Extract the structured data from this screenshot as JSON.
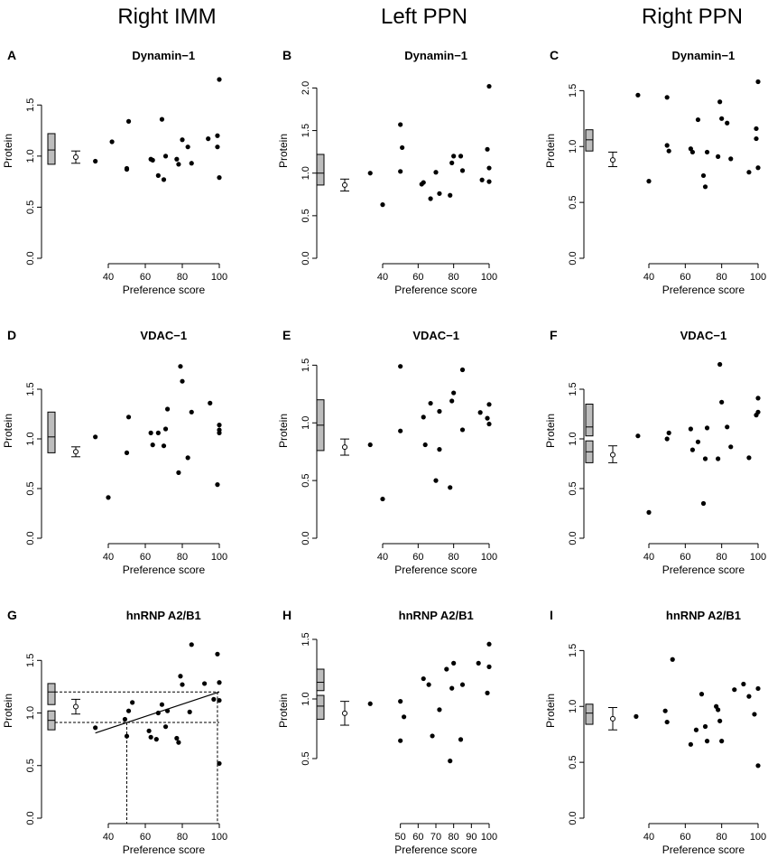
{
  "column_titles": [
    "Right IMM",
    "Left PPN",
    "Right PPN"
  ],
  "chart_data": [
    {
      "type": "scatter",
      "letter": "A",
      "title": "Dynamin−1",
      "xlabel": "Preference score",
      "ylabel": "Protein",
      "xlim": [
        30,
        100
      ],
      "ylim": [
        0,
        1.75
      ],
      "xticks": [
        "40",
        "60",
        "80",
        "100"
      ],
      "yticks": [
        "0.0",
        "0.5",
        "1.0",
        "1.5"
      ],
      "x": [
        33,
        42,
        50,
        50,
        51,
        63,
        64,
        67,
        69,
        70,
        71,
        77,
        78,
        80,
        83,
        85,
        94,
        99,
        99,
        100,
        100
      ],
      "y": [
        0.95,
        1.14,
        0.88,
        0.87,
        1.34,
        0.97,
        0.96,
        0.81,
        1.36,
        0.77,
        1.0,
        0.97,
        0.92,
        1.16,
        1.09,
        0.93,
        1.17,
        1.2,
        1.09,
        0.79,
        1.75
      ],
      "boxes": [
        {
          "low": 0.92,
          "median": 1.06,
          "high": 1.22
        }
      ],
      "ci": {
        "low": 0.93,
        "mid": 0.99,
        "high": 1.05
      }
    },
    {
      "type": "scatter",
      "letter": "B",
      "title": "Dynamin−1",
      "xlabel": "Preference score",
      "ylabel": "Protein",
      "xlim": [
        30,
        100
      ],
      "ylim": [
        0,
        2.1
      ],
      "xticks": [
        "40",
        "60",
        "80",
        "100"
      ],
      "yticks": [
        "0.0",
        "0.5",
        "1.0",
        "1.5",
        "2.0"
      ],
      "x": [
        33,
        40,
        50,
        50,
        51,
        62,
        63,
        67,
        70,
        72,
        78,
        79,
        80,
        84,
        85,
        96,
        99,
        100,
        100,
        100
      ],
      "y": [
        1.0,
        0.63,
        1.57,
        1.02,
        1.3,
        0.87,
        0.89,
        0.7,
        1.01,
        0.76,
        0.74,
        1.12,
        1.2,
        1.2,
        1.03,
        0.92,
        1.28,
        1.06,
        0.9,
        2.02
      ],
      "boxes": [
        {
          "low": 0.86,
          "median": 1.0,
          "high": 1.22
        }
      ],
      "ci": {
        "low": 0.79,
        "mid": 0.86,
        "high": 0.93
      }
    },
    {
      "type": "scatter",
      "letter": "C",
      "title": "Dynamin−1",
      "xlabel": "Preference score",
      "ylabel": "Protein",
      "xlim": [
        30,
        100
      ],
      "ylim": [
        0,
        1.6
      ],
      "xticks": [
        "40",
        "60",
        "80",
        "100"
      ],
      "yticks": [
        "0.0",
        "0.5",
        "1.0",
        "1.5"
      ],
      "x": [
        34,
        40,
        50,
        50,
        51,
        63,
        64,
        67,
        70,
        71,
        72,
        78,
        79,
        80,
        83,
        85,
        95,
        99,
        99,
        100,
        100
      ],
      "y": [
        1.46,
        0.69,
        1.44,
        1.01,
        0.96,
        0.98,
        0.95,
        1.24,
        0.74,
        0.64,
        0.95,
        0.91,
        1.4,
        1.25,
        1.21,
        0.89,
        0.77,
        1.16,
        1.07,
        0.81,
        1.58
      ],
      "boxes": [
        {
          "low": 0.96,
          "median": 1.06,
          "high": 1.15
        }
      ],
      "ci": {
        "low": 0.82,
        "mid": 0.88,
        "high": 0.95
      }
    },
    {
      "type": "scatter",
      "letter": "D",
      "title": "VDAC−1",
      "xlabel": "Preference score",
      "ylabel": "Protein",
      "xlim": [
        30,
        100
      ],
      "ylim": [
        0,
        1.8
      ],
      "xticks": [
        "40",
        "60",
        "80",
        "100"
      ],
      "yticks": [
        "0.0",
        "0.5",
        "1.0",
        "1.5"
      ],
      "x": [
        33,
        40,
        50,
        51,
        63,
        64,
        67,
        70,
        71,
        72,
        78,
        79,
        80,
        83,
        85,
        95,
        99,
        100,
        100,
        100
      ],
      "y": [
        1.02,
        0.41,
        0.86,
        1.22,
        1.06,
        0.94,
        1.06,
        0.93,
        1.1,
        1.3,
        0.66,
        1.73,
        1.58,
        0.81,
        1.27,
        1.36,
        0.54,
        1.14,
        1.09,
        1.06
      ],
      "boxes": [
        {
          "low": 0.86,
          "median": 1.02,
          "high": 1.27
        }
      ],
      "ci": {
        "low": 0.82,
        "mid": 0.87,
        "high": 0.92
      }
    },
    {
      "type": "scatter",
      "letter": "E",
      "title": "VDAC−1",
      "xlabel": "Preference score",
      "ylabel": "Protein",
      "xlim": [
        30,
        100
      ],
      "ylim": [
        0,
        1.55
      ],
      "xticks": [
        "40",
        "60",
        "80",
        "100"
      ],
      "yticks": [
        "0.0",
        "0.5",
        "1.0",
        "1.5"
      ],
      "x": [
        33,
        40,
        50,
        50,
        63,
        64,
        67,
        70,
        72,
        72,
        78,
        79,
        80,
        85,
        85,
        95,
        99,
        100,
        100
      ],
      "y": [
        0.81,
        0.34,
        1.49,
        0.93,
        1.05,
        0.81,
        1.17,
        0.5,
        0.77,
        1.1,
        0.44,
        1.19,
        1.26,
        1.46,
        0.94,
        1.09,
        1.04,
        1.16,
        0.99
      ],
      "boxes": [
        {
          "low": 0.76,
          "median": 0.98,
          "high": 1.2
        }
      ],
      "ci": {
        "low": 0.72,
        "mid": 0.79,
        "high": 0.86
      }
    },
    {
      "type": "scatter",
      "letter": "F",
      "title": "VDAC−1",
      "xlabel": "Preference score",
      "ylabel": "Protein",
      "xlim": [
        30,
        100
      ],
      "ylim": [
        0,
        1.8
      ],
      "xticks": [
        "40",
        "60",
        "80",
        "100"
      ],
      "yticks": [
        "0.0",
        "0.5",
        "1.0",
        "1.5"
      ],
      "x": [
        34,
        40,
        50,
        51,
        63,
        64,
        67,
        70,
        71,
        72,
        78,
        79,
        80,
        83,
        85,
        95,
        99,
        100,
        100
      ],
      "y": [
        1.03,
        0.26,
        1.0,
        1.06,
        1.1,
        0.89,
        0.97,
        0.35,
        0.8,
        1.11,
        0.8,
        1.75,
        1.37,
        1.12,
        0.92,
        0.81,
        1.24,
        1.41,
        1.27
      ],
      "boxes": [
        {
          "low": 0.76,
          "median": 0.87,
          "high": 0.98
        },
        {
          "low": 1.03,
          "median": 1.12,
          "high": 1.35
        }
      ],
      "ci": {
        "low": 0.76,
        "mid": 0.84,
        "high": 0.93
      }
    },
    {
      "type": "scatter",
      "letter": "G",
      "title": "hnRNP A2/B1",
      "xlabel": "Preference score",
      "ylabel": "Protein",
      "xlim": [
        30,
        100
      ],
      "ylim": [
        0,
        1.7
      ],
      "xticks": [
        "40",
        "60",
        "80",
        "100"
      ],
      "yticks": [
        "0.0",
        "0.5",
        "1.0",
        "1.5"
      ],
      "x": [
        33,
        49,
        50,
        51,
        53,
        62,
        63,
        66,
        67,
        69,
        71,
        72,
        77,
        78,
        79,
        80,
        84,
        85,
        92,
        97,
        99,
        100,
        100,
        100
      ],
      "y": [
        0.86,
        0.94,
        0.78,
        1.02,
        1.1,
        0.83,
        0.77,
        0.75,
        1.0,
        1.08,
        0.87,
        1.02,
        0.76,
        0.72,
        1.35,
        1.27,
        1.01,
        1.65,
        1.28,
        1.13,
        1.56,
        1.29,
        1.12,
        0.52
      ],
      "boxes": [
        {
          "low": 0.84,
          "median": 0.93,
          "high": 1.02
        },
        {
          "low": 1.08,
          "median": 1.2,
          "high": 1.28
        }
      ],
      "ci": {
        "low": 0.99,
        "mid": 1.06,
        "high": 1.13
      },
      "regression": {
        "x0": 33,
        "y0": 0.81,
        "x1": 100,
        "y1": 1.2
      },
      "reference_x": [
        50,
        99
      ],
      "reference_y": [
        0.91,
        1.2
      ]
    },
    {
      "type": "scatter",
      "letter": "H",
      "title": "hnRNP A2/B1",
      "xlabel": "Preference score",
      "ylabel": "Protein",
      "xlim": [
        30,
        100
      ],
      "ylim": [
        0,
        1.5
      ],
      "xticks": [
        "50",
        "60",
        "70",
        "80",
        "90",
        "100"
      ],
      "yticks": [
        "0.5",
        "1.0",
        "1.5"
      ],
      "x": [
        33,
        50,
        50,
        52,
        63,
        66,
        68,
        72,
        76,
        78,
        79,
        80,
        84,
        85,
        94,
        99,
        100,
        100
      ],
      "y": [
        0.96,
        0.98,
        0.65,
        0.85,
        1.17,
        1.12,
        0.69,
        0.91,
        1.25,
        0.48,
        1.09,
        1.3,
        0.66,
        1.12,
        1.3,
        1.05,
        1.27,
        1.46
      ],
      "boxes": [
        {
          "low": 0.83,
          "median": 0.94,
          "high": 1.03
        },
        {
          "low": 1.07,
          "median": 1.14,
          "high": 1.25
        }
      ],
      "ci": {
        "low": 0.78,
        "mid": 0.88,
        "high": 0.98
      }
    },
    {
      "type": "scatter",
      "letter": "I",
      "title": "hnRNP A2/B1",
      "xlabel": "Preference score",
      "ylabel": "Protein",
      "xlim": [
        30,
        100
      ],
      "ylim": [
        0,
        1.6
      ],
      "xticks": [
        "40",
        "60",
        "80",
        "100"
      ],
      "yticks": [
        "0.0",
        "0.5",
        "1.0",
        "1.5"
      ],
      "x": [
        33,
        49,
        50,
        53,
        63,
        66,
        69,
        71,
        72,
        77,
        78,
        79,
        80,
        87,
        92,
        95,
        98,
        100,
        100
      ],
      "y": [
        0.91,
        0.96,
        0.86,
        1.42,
        0.66,
        0.79,
        1.11,
        0.82,
        0.69,
        1.0,
        0.97,
        0.87,
        0.69,
        1.15,
        1.2,
        1.09,
        0.93,
        0.47,
        1.16
      ],
      "boxes": [
        {
          "low": 0.84,
          "median": 0.94,
          "high": 1.02
        }
      ],
      "ci": {
        "low": 0.79,
        "mid": 0.89,
        "high": 0.99
      }
    }
  ]
}
